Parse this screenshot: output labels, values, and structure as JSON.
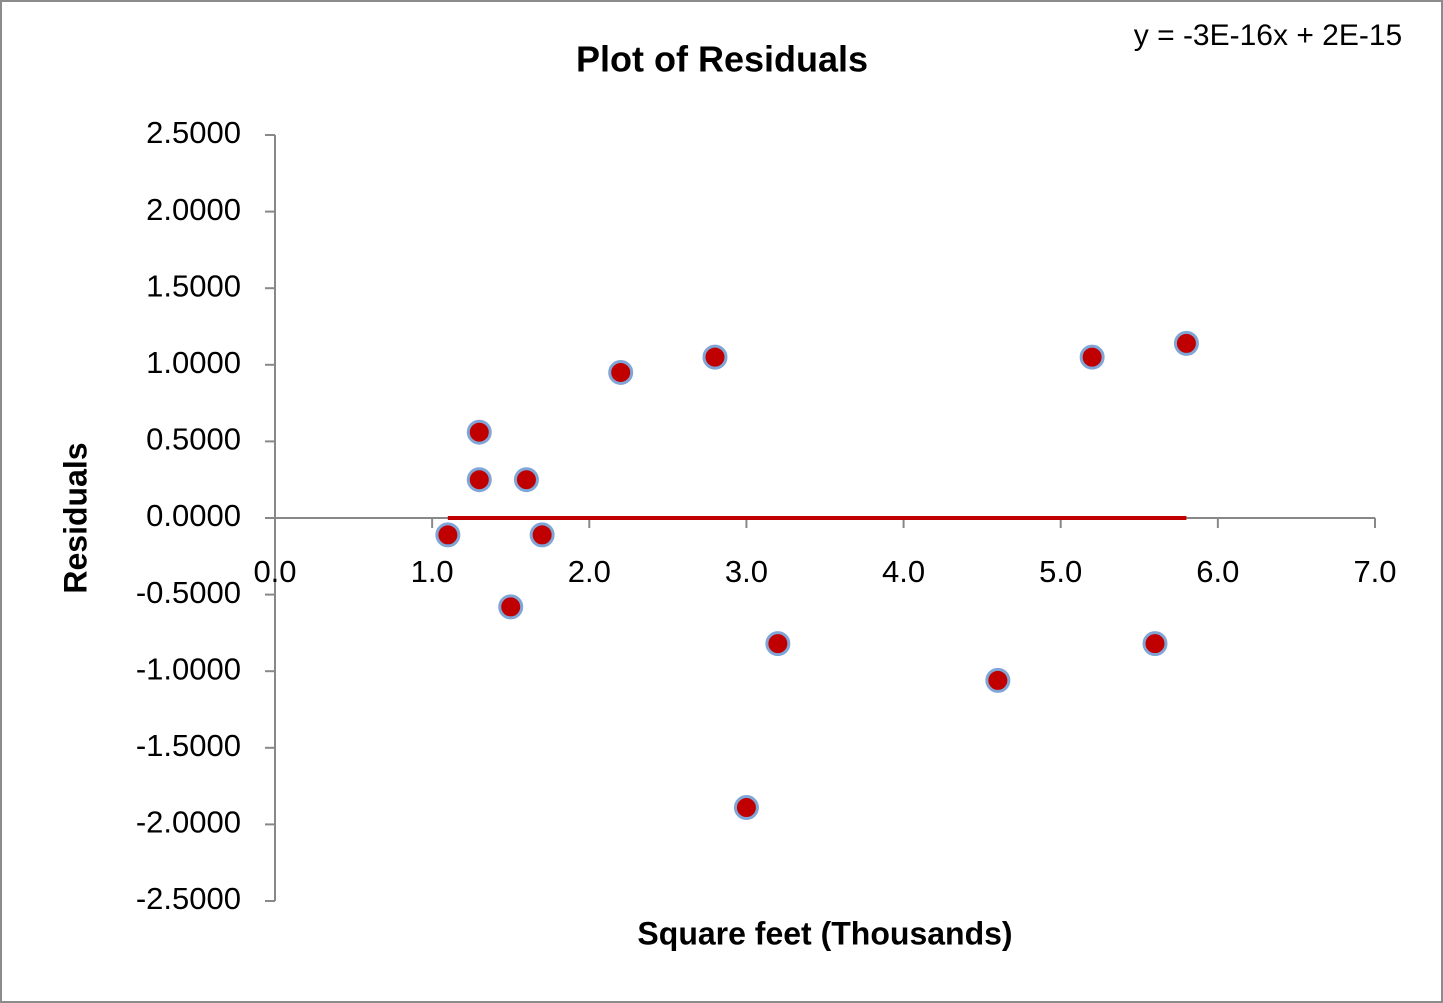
{
  "chart_data": {
    "type": "scatter",
    "title": "Plot of Residuals",
    "x_label": "Square feet (Thousands)",
    "y_label": "Residuals",
    "annotation": "y = -3E-16x + 2E-15",
    "series": [
      {
        "name": "Residuals",
        "color": "#c00000",
        "edge_color": "#7fa6d6",
        "x": [
          1.1,
          1.3,
          1.3,
          1.5,
          1.6,
          1.7,
          2.2,
          2.8,
          3.0,
          3.2,
          4.6,
          5.2,
          5.6,
          5.8
        ],
        "values": [
          -0.11,
          0.56,
          0.25,
          -0.58,
          0.25,
          -0.11,
          0.95,
          1.05,
          -1.89,
          -0.82,
          -1.06,
          1.05,
          -0.82,
          1.14
        ]
      }
    ],
    "trendline": {
      "color": "#c00000",
      "x": [
        1.1,
        5.8
      ],
      "values": [
        0,
        0
      ]
    },
    "xlim": [
      0,
      7
    ],
    "ylim": [
      -2.5,
      2.5
    ],
    "xticks": [
      {
        "value": 0,
        "label": "0.0"
      },
      {
        "value": 1,
        "label": "1.0"
      },
      {
        "value": 2,
        "label": "2.0"
      },
      {
        "value": 3,
        "label": "3.0"
      },
      {
        "value": 4,
        "label": "4.0"
      },
      {
        "value": 5,
        "label": "5.0"
      },
      {
        "value": 6,
        "label": "6.0"
      },
      {
        "value": 7,
        "label": "7.0"
      }
    ],
    "yticks": [
      {
        "value": -2.5,
        "label": "-2.5000"
      },
      {
        "value": -2,
        "label": "-2.0000"
      },
      {
        "value": -1.5,
        "label": "-1.5000"
      },
      {
        "value": -1,
        "label": "-1.0000"
      },
      {
        "value": -0.5,
        "label": "-0.5000"
      },
      {
        "value": 0,
        "label": "0.0000"
      },
      {
        "value": 0.5,
        "label": "0.5000"
      },
      {
        "value": 1,
        "label": "1.0000"
      },
      {
        "value": 1.5,
        "label": "1.5000"
      },
      {
        "value": 2,
        "label": "2.0000"
      },
      {
        "value": 2.5,
        "label": "2.5000"
      }
    ],
    "grid": false
  }
}
